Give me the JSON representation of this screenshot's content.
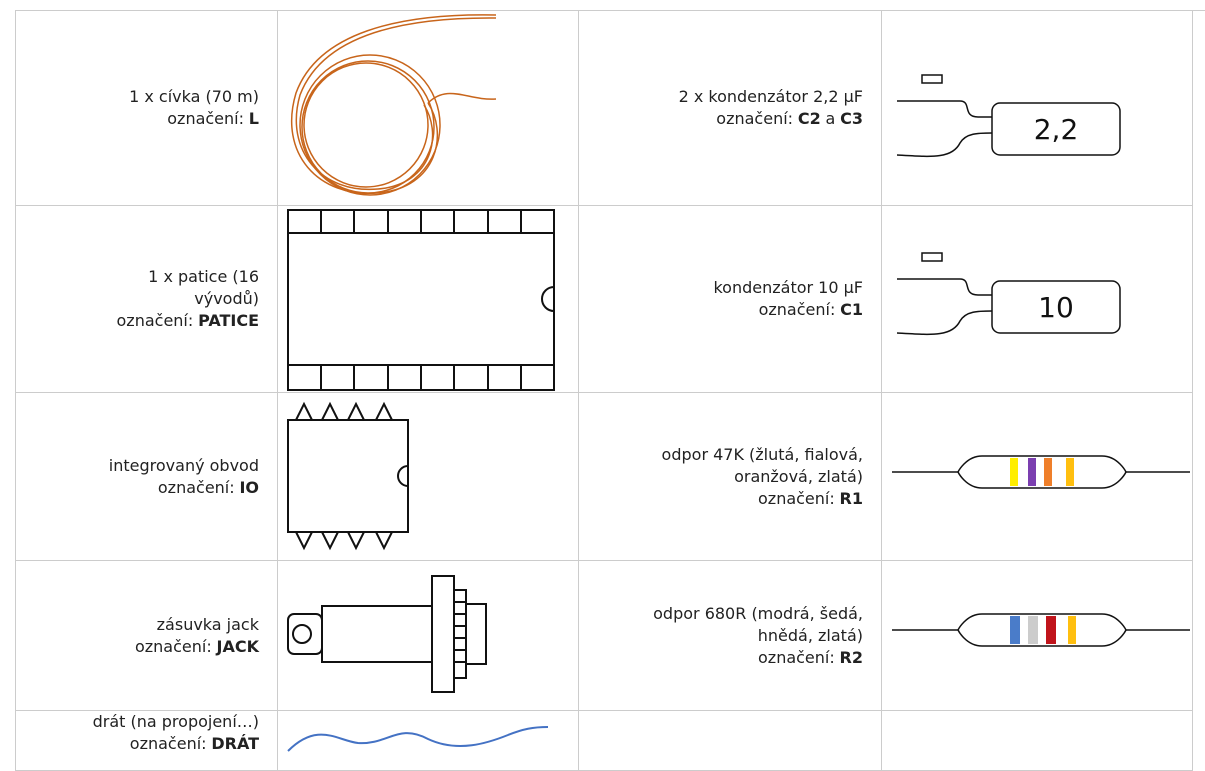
{
  "rows": [
    {
      "left": {
        "desc": "1 x cívka (70 m)",
        "label": [
          {
            "text": "označení:"
          },
          {
            "text": "L",
            "bold": true
          }
        ]
      },
      "right": {
        "desc": "2 x kondenzátor 2,2 µF",
        "label": [
          {
            "text": "označení:"
          },
          {
            "text": "C2",
            "bold": true
          },
          {
            "text": "a"
          },
          {
            "text": "C3",
            "bold": true
          }
        ],
        "image_text": "2,2"
      }
    },
    {
      "left": {
        "desc": "1 x patice (16 vývodů)",
        "label": [
          {
            "text": "označení:"
          },
          {
            "text": "PATICE",
            "bold": true
          }
        ]
      },
      "right": {
        "desc": "kondenzátor 10 µF",
        "label": [
          {
            "text": "označení:"
          },
          {
            "text": "C1",
            "bold": true
          }
        ],
        "image_text": "10"
      }
    },
    {
      "left": {
        "desc": "integrovaný obvod",
        "label": [
          {
            "text": "označení:"
          },
          {
            "text": "IO",
            "bold": true
          }
        ]
      },
      "right": {
        "desc": "odpor 47K (žlutá, fialová, oranžová, zlatá)",
        "label": [
          {
            "text": "označení:"
          },
          {
            "text": "R1",
            "bold": true
          }
        ]
      }
    },
    {
      "left": {
        "desc": "zásuvka jack",
        "label": [
          {
            "text": "označení:"
          },
          {
            "text": "JACK",
            "bold": true
          }
        ]
      },
      "right": {
        "desc": "odpor 680R (modrá, šedá, hnědá, zlatá)",
        "label": [
          {
            "text": "označení:"
          },
          {
            "text": "R2",
            "bold": true
          }
        ]
      }
    },
    {
      "left": {
        "desc": "drát (na propojení…)",
        "label": [
          {
            "text": "označení:"
          },
          {
            "text": "DRÁT",
            "bold": true
          }
        ]
      }
    }
  ]
}
